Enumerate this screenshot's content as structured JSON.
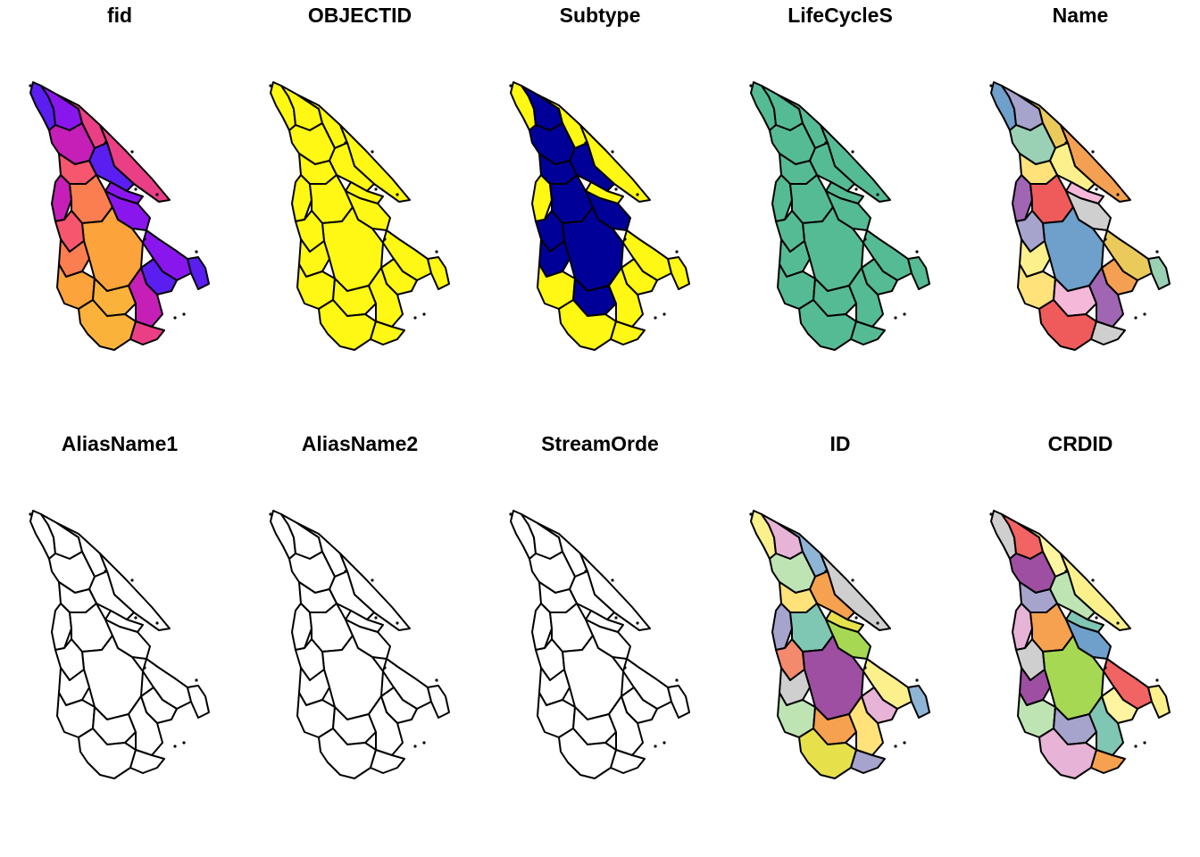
{
  "figure": {
    "background": "#ffffff",
    "outline_color": "#000000"
  },
  "panels": [
    {
      "title": "fid",
      "style": "gradient",
      "colors": [
        "#5a1ff0",
        "#8a16ee",
        "#c51fb8",
        "#ea3f85",
        "#f7566f",
        "#fb7e50",
        "#fca33b",
        "#fbb23a"
      ]
    },
    {
      "title": "OBJECTID",
      "style": "uniform",
      "colors": [
        "#fff714"
      ]
    },
    {
      "title": "Subtype",
      "style": "binary",
      "colors": [
        "#000099",
        "#fff714"
      ]
    },
    {
      "title": "LifeCycleS",
      "style": "uniform",
      "colors": [
        "#55bb95"
      ]
    },
    {
      "title": "Name",
      "style": "categorical",
      "colors": [
        "#6f9fcb",
        "#ef5b5b",
        "#f5b8d8",
        "#fbf08c",
        "#f4a052",
        "#a6a3cc",
        "#cfcfcf",
        "#a066b4",
        "#ffe27a",
        "#9ad1b5",
        "#eaca5b"
      ]
    },
    {
      "title": "AliasName1",
      "style": "empty",
      "colors": [
        "#ffffff"
      ]
    },
    {
      "title": "AliasName2",
      "style": "empty",
      "colors": [
        "#ffffff"
      ]
    },
    {
      "title": "StreamOrde",
      "style": "empty",
      "colors": [
        "#ffffff"
      ]
    },
    {
      "title": "ID",
      "style": "categorical",
      "colors": [
        "#8eb4d6",
        "#a6d854",
        "#f6a14f",
        "#fbf08c",
        "#a6a3cc",
        "#cfcfcf",
        "#9e4fa2",
        "#ffe27a",
        "#e7b3d6",
        "#7fc6b3",
        "#bfe4b4",
        "#f48a6d",
        "#e6e14b"
      ]
    },
    {
      "title": "CRDID",
      "style": "categorical",
      "colors": [
        "#f26363",
        "#a6a3cc",
        "#a6d854",
        "#9e4fa2",
        "#f6a14f",
        "#fff5a0",
        "#7fc6b3",
        "#cfcfcf",
        "#bfe4b4",
        "#6f9fcb",
        "#fbf08c",
        "#e7b3d6"
      ]
    }
  ]
}
